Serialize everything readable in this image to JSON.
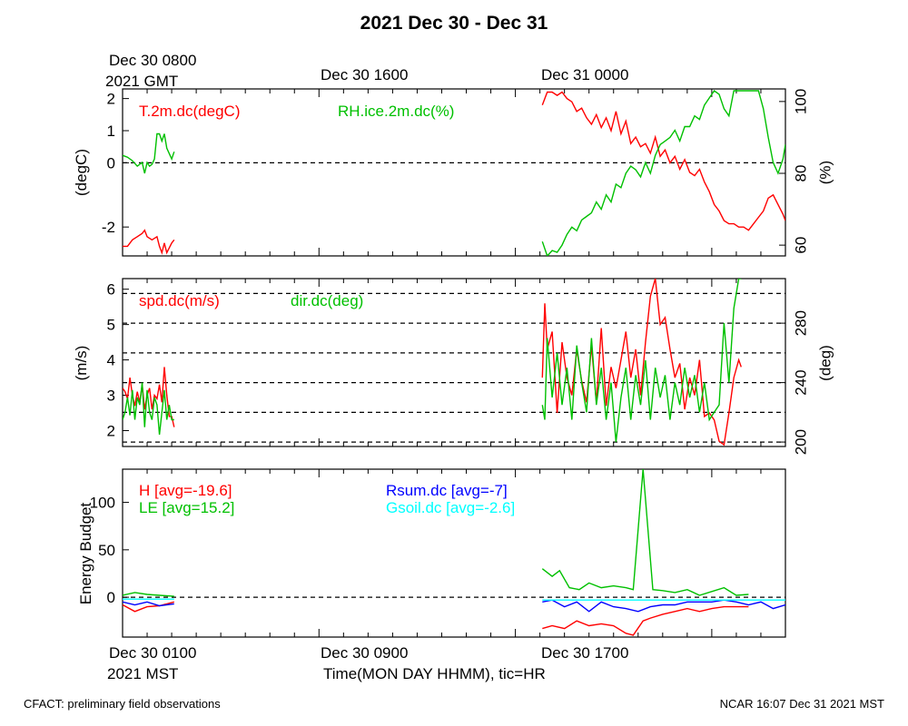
{
  "page": {
    "title": "2021 Dec 30 - Dec 31",
    "top_time_labels": [
      "Dec 30 1600",
      "Dec 31 0000"
    ],
    "top_left_label": [
      "Dec 30 0800",
      "2021 GMT"
    ],
    "bottom_time_labels": [
      "Dec 30 0900",
      "Dec 30 1700"
    ],
    "bottom_left_label": [
      "Dec 30 0100",
      "2021 MST"
    ],
    "xlabel": "Time(MON DAY HHMM), tic=HR",
    "footer_left": "CFACT: preliminary field observations",
    "footer_right": "NCAR 16:07 Dec 31 2021 MST"
  },
  "chart_data": [
    {
      "type": "line",
      "panel": "temperature-humidity",
      "x_unit": "hours since Dec 30 0100 MST",
      "xlim": [
        0,
        27
      ],
      "ylabel": "(degC)",
      "ylim": [
        -2.9,
        2.3
      ],
      "yticks": [
        -2,
        0,
        1,
        2
      ],
      "y2label": "(%)",
      "y2lim": [
        57,
        103.5
      ],
      "y2ticks": [
        60,
        80,
        100
      ],
      "ref_lines": [
        0
      ],
      "grid": false,
      "series": [
        {
          "name": "T.2m.dc(degC)",
          "axis": "left",
          "color": "#ff0000",
          "segments": [
            {
              "x": [
                0,
                0.2,
                0.4,
                0.6,
                0.8,
                0.9,
                1.0,
                1.2,
                1.4,
                1.5,
                1.6,
                1.7,
                1.8,
                2.0,
                2.1
              ],
              "y": [
                -2.6,
                -2.6,
                -2.4,
                -2.3,
                -2.2,
                -2.1,
                -2.3,
                -2.4,
                -2.3,
                -2.6,
                -2.8,
                -2.5,
                -2.8,
                -2.5,
                -2.4
              ]
            },
            {
              "x": [
                17.1,
                17.3,
                17.5,
                17.7,
                17.9,
                18.1,
                18.3,
                18.5,
                18.7,
                18.9,
                19.1,
                19.3,
                19.5,
                19.7,
                19.9,
                20.1,
                20.3,
                20.5,
                20.7,
                20.9,
                21.1,
                21.3,
                21.5,
                21.7,
                21.9,
                22.1,
                22.3,
                22.5,
                22.7,
                22.9,
                23.1,
                23.3,
                23.5,
                23.7,
                23.9,
                24.1,
                24.3,
                24.5,
                24.7,
                24.9,
                25.1,
                25.3,
                25.5,
                25.7,
                25.9,
                26.1,
                26.3,
                26.5,
                26.7,
                26.9,
                27.0
              ],
              "y": [
                1.8,
                2.2,
                2.2,
                2.1,
                2.2,
                2.0,
                1.9,
                1.6,
                1.7,
                1.4,
                1.2,
                1.5,
                1.1,
                1.4,
                1.0,
                1.6,
                0.9,
                1.3,
                0.6,
                0.8,
                0.5,
                0.6,
                0.3,
                0.8,
                0.2,
                0.4,
                0.0,
                0.2,
                -0.2,
                0.1,
                -0.3,
                -0.4,
                -0.2,
                -0.6,
                -0.9,
                -1.3,
                -1.5,
                -1.8,
                -1.9,
                -1.9,
                -2.0,
                -2.0,
                -2.1,
                -1.9,
                -1.7,
                -1.5,
                -1.1,
                -1.0,
                -1.3,
                -1.6,
                -1.8
              ]
            }
          ]
        },
        {
          "name": "RH.ice.2m.dc(%)",
          "axis": "right",
          "color": "#00c000",
          "segments": [
            {
              "x": [
                0,
                0.2,
                0.4,
                0.6,
                0.8,
                0.9,
                1.0,
                1.1,
                1.2,
                1.3,
                1.4,
                1.5,
                1.6,
                1.7,
                1.8,
                2.0,
                2.1
              ],
              "y": [
                85,
                84.5,
                83.5,
                82,
                83,
                80,
                83,
                82,
                82.5,
                84,
                91,
                91,
                89,
                91,
                87,
                84,
                86
              ]
            },
            {
              "x": [
                17.1,
                17.3,
                17.5,
                17.7,
                17.9,
                18.1,
                18.3,
                18.5,
                18.7,
                18.9,
                19.1,
                19.3,
                19.5,
                19.7,
                19.9,
                20.1,
                20.3,
                20.5,
                20.7,
                20.9,
                21.1,
                21.3,
                21.5,
                21.7,
                21.9,
                22.1,
                22.3,
                22.5,
                22.7,
                22.9,
                23.1,
                23.3,
                23.5,
                23.7,
                23.9,
                24.1,
                24.3,
                24.5,
                24.7,
                24.9,
                25.1,
                25.3,
                25.5,
                25.7,
                25.9,
                26.1,
                26.3,
                26.5,
                26.7,
                26.9,
                27.0
              ],
              "y": [
                61,
                57,
                58.5,
                58,
                60,
                63,
                65,
                64,
                67,
                68,
                69,
                72,
                70,
                74,
                72,
                77,
                76,
                80,
                82,
                81,
                79,
                83,
                80,
                85,
                88,
                89,
                90,
                92,
                89,
                93,
                93,
                96,
                95,
                99,
                101,
                103,
                102,
                98,
                96,
                103,
                103,
                103,
                103,
                103,
                103,
                98,
                90,
                83,
                80,
                84,
                88
              ]
            }
          ]
        }
      ]
    },
    {
      "type": "line",
      "panel": "wind",
      "x_unit": "hours since Dec 30 0100 MST",
      "xlim": [
        0,
        27
      ],
      "ylabel": "(m/s)",
      "ylim": [
        1.55,
        6.3
      ],
      "yticks": [
        2,
        3,
        4,
        5,
        6
      ],
      "y2label": "(deg)",
      "y2lim": [
        197,
        310
      ],
      "y2ticks": [
        200,
        240,
        280
      ],
      "ref_lines_right": [
        200,
        220,
        240,
        260,
        280,
        300
      ],
      "grid": false,
      "series": [
        {
          "name": "spd.dc(m/s)",
          "axis": "left",
          "color": "#ff0000",
          "segments": [
            {
              "x": [
                0,
                0.1,
                0.2,
                0.3,
                0.4,
                0.5,
                0.6,
                0.7,
                0.8,
                0.9,
                1.0,
                1.1,
                1.2,
                1.3,
                1.4,
                1.5,
                1.6,
                1.7,
                1.8,
                1.9,
                2.0,
                2.1
              ],
              "y": [
                3.2,
                3.1,
                2.9,
                3.5,
                3.0,
                2.7,
                3.1,
                2.8,
                3.3,
                2.6,
                3.0,
                3.2,
                2.6,
                3.0,
                2.9,
                3.3,
                2.8,
                3.8,
                3.0,
                2.4,
                2.4,
                2.1
              ]
            },
            {
              "x": [
                17.1,
                17.2,
                17.3,
                17.5,
                17.7,
                17.9,
                18.1,
                18.3,
                18.5,
                18.7,
                18.9,
                19.1,
                19.3,
                19.5,
                19.7,
                19.9,
                20.1,
                20.3,
                20.5,
                20.7,
                20.9,
                21.1,
                21.3,
                21.5,
                21.7,
                21.9,
                22.1,
                22.3,
                22.5,
                22.7,
                22.9,
                23.1,
                23.3,
                23.5,
                23.7,
                23.9,
                24.1,
                24.3,
                24.5,
                24.7,
                24.9,
                25.1,
                25.2
              ],
              "y": [
                3.5,
                5.6,
                4.3,
                4.8,
                2.5,
                4.5,
                3.5,
                3.0,
                4.3,
                3.4,
                2.8,
                4.4,
                2.8,
                4.9,
                2.7,
                3.8,
                3.2,
                4.0,
                4.8,
                3.5,
                4.3,
                3.0,
                4.5,
                5.8,
                6.3,
                5.0,
                5.2,
                4.3,
                3.5,
                3.9,
                2.6,
                3.5,
                3.0,
                4.0,
                2.4,
                2.5,
                2.3,
                1.7,
                1.6,
                2.5,
                3.5,
                4.0,
                3.8
              ]
            }
          ]
        },
        {
          "name": "dir.dc(deg)",
          "axis": "right",
          "color": "#00c000",
          "segments": [
            {
              "x": [
                0,
                0.1,
                0.2,
                0.3,
                0.4,
                0.5,
                0.6,
                0.7,
                0.8,
                0.9,
                1.0,
                1.1,
                1.2,
                1.3,
                1.4,
                1.5,
                1.6,
                1.7,
                1.8,
                1.9,
                2.0,
                2.1
              ],
              "y": [
                215,
                220,
                230,
                218,
                235,
                215,
                230,
                225,
                240,
                210,
                235,
                220,
                215,
                230,
                225,
                205,
                220,
                235,
                215,
                225,
                215,
                215
              ]
            },
            {
              "x": [
                17.1,
                17.2,
                17.3,
                17.5,
                17.7,
                17.9,
                18.1,
                18.3,
                18.5,
                18.7,
                18.9,
                19.1,
                19.3,
                19.5,
                19.7,
                19.9,
                20.1,
                20.3,
                20.5,
                20.7,
                20.9,
                21.1,
                21.3,
                21.5,
                21.7,
                21.9,
                22.1,
                22.3,
                22.5,
                22.7,
                22.9,
                23.1,
                23.3,
                23.5,
                23.7,
                23.9,
                24.1,
                24.3,
                24.5,
                24.7,
                24.9,
                25.1,
                25.2
              ],
              "y": [
                225,
                215,
                270,
                230,
                260,
                225,
                250,
                215,
                265,
                240,
                220,
                270,
                225,
                250,
                215,
                240,
                200,
                230,
                250,
                215,
                245,
                225,
                255,
                215,
                250,
                230,
                245,
                215,
                240,
                225,
                250,
                230,
                245,
                220,
                240,
                215,
                220,
                225,
                280,
                240,
                290,
                310,
                310
              ]
            }
          ]
        }
      ]
    },
    {
      "type": "line",
      "panel": "energy-budget",
      "x_unit": "hours since Dec 30 0100 MST",
      "xlim": [
        0,
        27
      ],
      "ylabel": "Energy Budget",
      "ylim": [
        -42,
        135
      ],
      "yticks": [
        0,
        50,
        100
      ],
      "ref_lines": [
        0
      ],
      "grid": false,
      "series": [
        {
          "name": "H [avg=-19.6]",
          "color": "#ff0000",
          "segments": [
            {
              "x": [
                0,
                0.5,
                1.0,
                1.5,
                2.1
              ],
              "y": [
                -8,
                -15,
                -10,
                -9,
                -5
              ]
            },
            {
              "x": [
                17.1,
                17.5,
                18.0,
                18.5,
                19.0,
                19.5,
                20.0,
                20.5,
                20.8,
                21.2,
                21.5,
                22.0,
                22.5,
                23.0,
                23.5,
                24.0,
                24.5,
                25.0,
                25.5
              ],
              "y": [
                -33,
                -30,
                -33,
                -25,
                -30,
                -28,
                -30,
                -38,
                -40,
                -25,
                -22,
                -18,
                -15,
                -12,
                -15,
                -12,
                -10,
                -10,
                -10
              ]
            }
          ]
        },
        {
          "name": "LE [avg=15.2]",
          "color": "#00c000",
          "segments": [
            {
              "x": [
                0,
                0.5,
                1.0,
                1.5,
                2.1
              ],
              "y": [
                2,
                5,
                3,
                2,
                1
              ]
            },
            {
              "x": [
                17.1,
                17.5,
                17.8,
                18.2,
                18.6,
                19.0,
                19.5,
                20.0,
                20.5,
                20.8,
                21.2,
                21.6,
                22.0,
                22.5,
                23.0,
                23.5,
                24.0,
                24.5,
                25.0,
                25.5
              ],
              "y": [
                30,
                22,
                28,
                10,
                8,
                15,
                10,
                12,
                10,
                8,
                135,
                8,
                7,
                5,
                8,
                2,
                6,
                10,
                2,
                3
              ]
            }
          ]
        },
        {
          "name": "Rsum.dc [avg=-7]",
          "color": "#0000ff",
          "segments": [
            {
              "x": [
                0,
                0.5,
                1.0,
                1.5,
                2.1
              ],
              "y": [
                -5,
                -8,
                -5,
                -9,
                -7
              ]
            },
            {
              "x": [
                17.1,
                17.5,
                18.0,
                18.5,
                19.0,
                19.5,
                20.0,
                20.5,
                21.0,
                21.5,
                22.0,
                22.5,
                23.0,
                23.5,
                24.0,
                24.5,
                25.0,
                25.5,
                26.0,
                26.5,
                27.0
              ],
              "y": [
                -5,
                -3,
                -10,
                -5,
                -15,
                -5,
                -10,
                -12,
                -15,
                -10,
                -8,
                -8,
                -5,
                -5,
                -5,
                -3,
                -5,
                -8,
                -5,
                -12,
                -8
              ]
            }
          ]
        },
        {
          "name": "Gsoil.dc [avg=-2.6]",
          "color": "#00ffff",
          "segments": [
            {
              "x": [
                0,
                2.1
              ],
              "y": [
                -2,
                -2
              ]
            },
            {
              "x": [
                17.1,
                27.0
              ],
              "y": [
                -3,
                -3
              ]
            }
          ]
        }
      ]
    }
  ]
}
